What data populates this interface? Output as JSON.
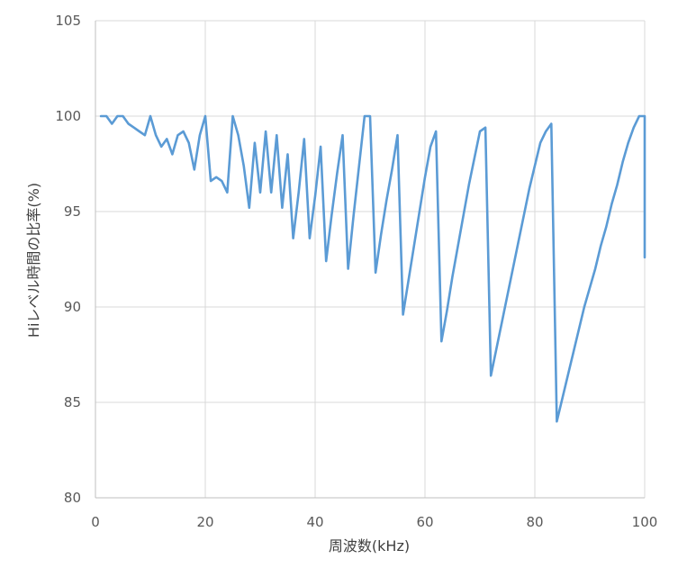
{
  "chart_data": {
    "type": "line",
    "title": "",
    "xlabel": "周波数(kHz)",
    "ylabel": "Hiレベル時間の比率(%)",
    "xlim": [
      0,
      100
    ],
    "ylim": [
      80,
      105
    ],
    "xticks": [
      "0",
      "20",
      "40",
      "60",
      "80",
      "100"
    ],
    "yticks": [
      "80",
      "85",
      "90",
      "95",
      "100",
      "105"
    ],
    "grid": true,
    "legend": "none",
    "series": [
      {
        "color": "#5b9bd5",
        "x": [
          1,
          2,
          3,
          4,
          5,
          6,
          7,
          8,
          9,
          10,
          11,
          12,
          13,
          14,
          15,
          16,
          17,
          18,
          19,
          20,
          21,
          22,
          23,
          24,
          25,
          26,
          27,
          28,
          29,
          30,
          31,
          32,
          33,
          34,
          35,
          36,
          37,
          38,
          39,
          40,
          41,
          42,
          43,
          44,
          45,
          46,
          47,
          48,
          49,
          50,
          51,
          52,
          53,
          54,
          55,
          56,
          57,
          58,
          59,
          60,
          61,
          62,
          63,
          64,
          65,
          66,
          67,
          68,
          69,
          70,
          71,
          72,
          73,
          74,
          75,
          76,
          77,
          78,
          79,
          80,
          81,
          82,
          83,
          84,
          85,
          86,
          87,
          88,
          89,
          90,
          91,
          92,
          93,
          94,
          95,
          96,
          97,
          98,
          99,
          100,
          100
        ],
        "y": [
          100,
          100,
          99.6,
          100,
          100,
          99.6,
          99.4,
          99.2,
          99,
          100,
          99,
          98.4,
          98.8,
          98,
          99,
          99.2,
          98.6,
          97.2,
          99,
          100,
          96.6,
          96.8,
          96.6,
          96,
          100,
          99,
          97.4,
          95.2,
          98.6,
          96,
          99.2,
          96,
          99,
          95.2,
          98,
          93.6,
          96,
          98.8,
          93.6,
          95.8,
          98.4,
          92.4,
          94.8,
          97,
          99,
          92,
          94.8,
          97.4,
          100,
          100,
          91.8,
          93.8,
          95.6,
          97.2,
          99,
          89.6,
          91.4,
          93.2,
          95,
          96.8,
          98.4,
          99.2,
          88.2,
          89.8,
          91.6,
          93.2,
          94.8,
          96.4,
          97.8,
          99.2,
          99.4,
          86.4,
          87.8,
          89.2,
          90.6,
          92,
          93.4,
          94.8,
          96.2,
          97.4,
          98.6,
          99.2,
          99.6,
          84,
          85.2,
          86.4,
          87.6,
          88.8,
          90,
          91,
          92,
          93.2,
          94.2,
          95.4,
          96.4,
          97.6,
          98.6,
          99.4,
          100,
          100,
          92.6
        ]
      }
    ]
  }
}
